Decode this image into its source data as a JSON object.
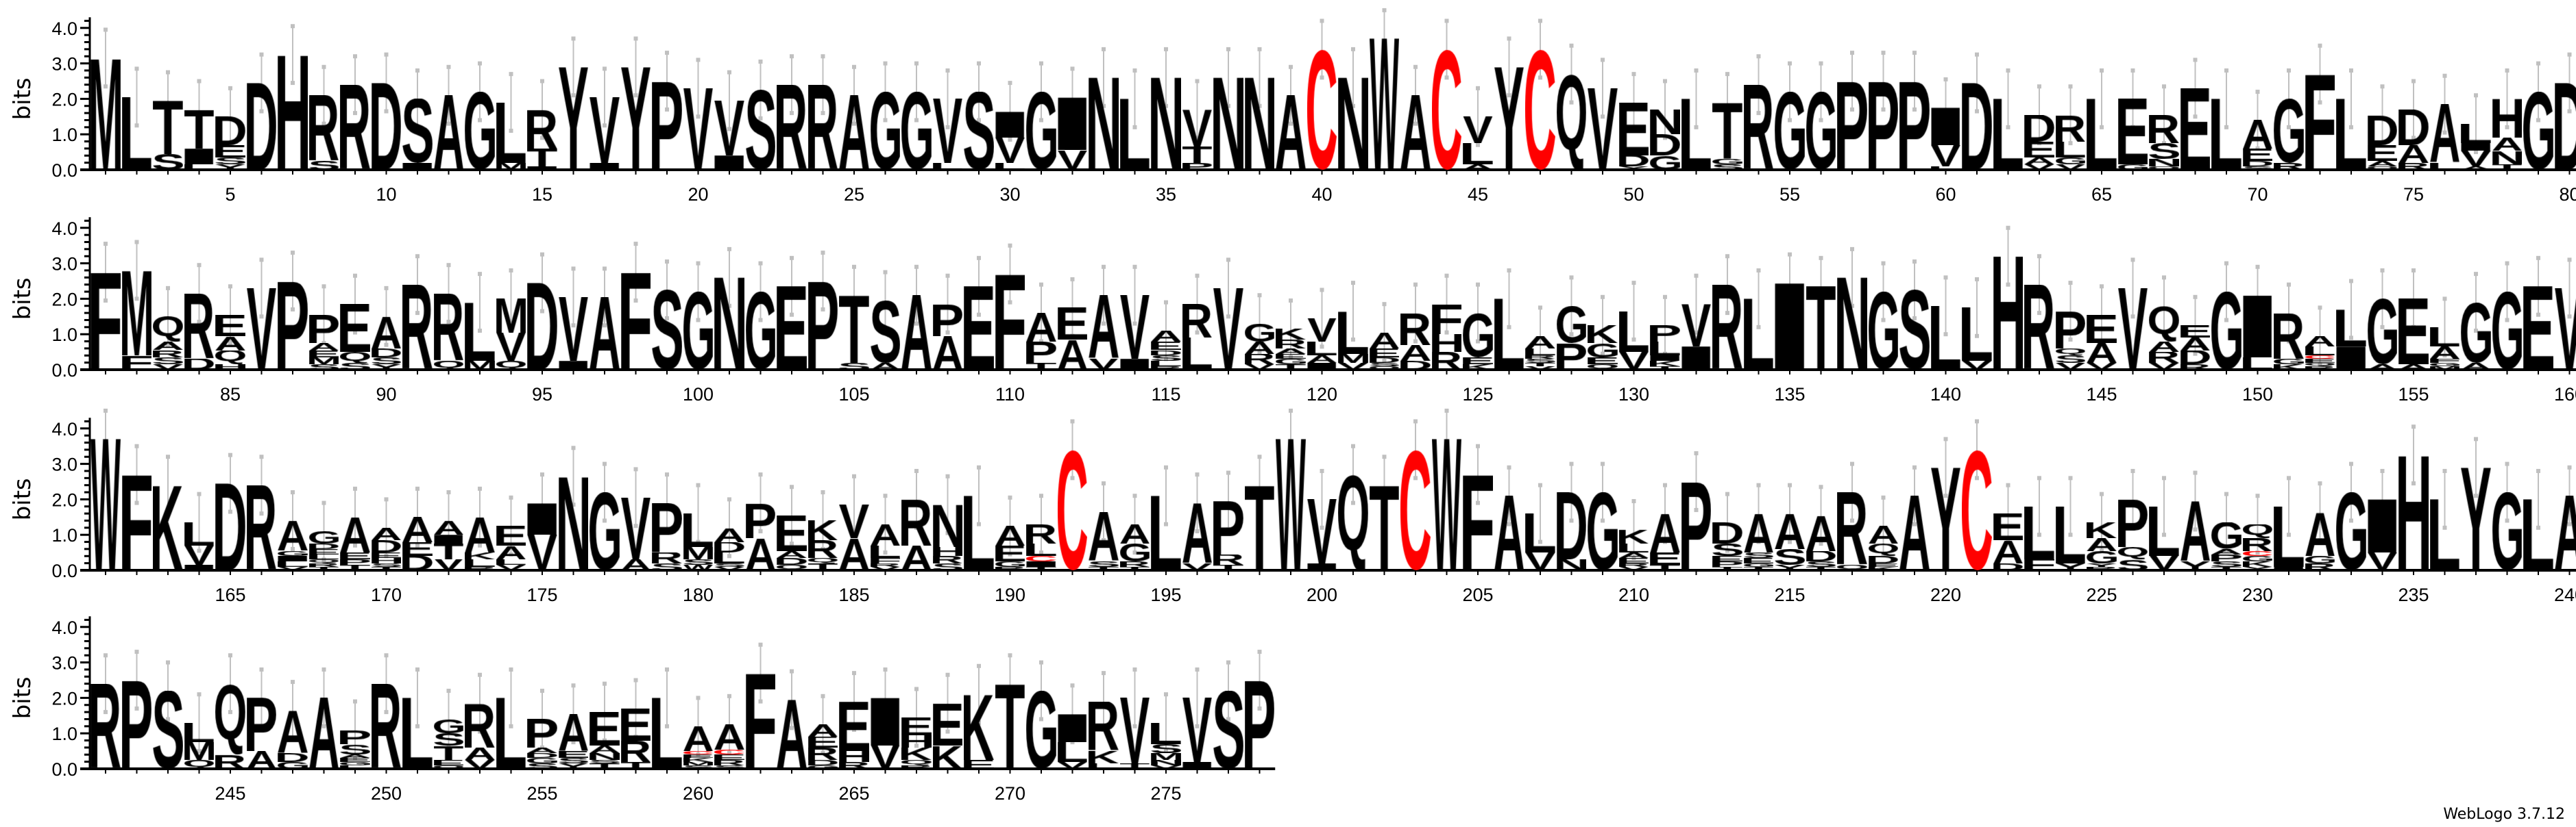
{
  "chart_data": {
    "type": "sequence-logo",
    "ylabel": "bits",
    "ylim": [
      0,
      4.3
    ],
    "yticks": [
      "0.0",
      "1.0",
      "2.0",
      "3.0",
      "4.0"
    ],
    "positions_per_line": 80,
    "first_position": 1,
    "last_position": 278,
    "xtick_every": 5,
    "error_bars": true,
    "errorbar_halfwidth_bits": 0.8,
    "colors": {
      "default": "#000000",
      "C": "#ff0000",
      "errorbar": "#c0c0c0"
    },
    "column_format": "letters stacked bottom-to-top, letter:bits",
    "columns": [
      "M:3.15",
      "L:2.05",
      "S:0.45 T:1.5",
      "L:0.15 I:0.45 T:1.1",
      "Y:0.15 S:0.2 E:0.35 D:0.8",
      "D:2.45",
      "H:3.25",
      "S:0.25 R:1.85",
      "R:2.4",
      "D:2.45",
      "I:0.2 S:1.8",
      "A:2.1",
      "G:2.2",
      "M:0.2 L:1.7",
      "I:0.1 T:0.5 R:1.1",
      "Y:2.9",
      "I:0.2 V:1.85",
      "Y:2.9",
      "P:2.5",
      "V:2.3",
      "I:0.4 V:1.55",
      "S:2.25",
      "R:2.4",
      "R:2.4",
      "A:2.1",
      "G:2.2",
      "G:2.2",
      "L:0.2 V:1.8",
      "S:2.2",
      "L:0.2 V:0.7 I:0.75",
      "G:2.2",
      "V:0.55 I:1.5",
      "N:2.6",
      "L:2.0",
      "N:2.6",
      "P:0.2 T:0.45 V:1.05",
      "N:2.6",
      "N:2.6",
      "A:2.1",
      "C:3.4",
      "N:2.6",
      "W:3.7",
      "A:2.1",
      "C:3.4",
      "A:0.15 L:0.6 V:0.75",
      "Y:2.9",
      "C:3.4",
      "Q:2.7",
      "V:2.3",
      "Y:0.1 D:0.3 E:1.5",
      "G:0.4 D:0.6 N:0.7",
      "L:2.0",
      "S:0.15 G:0.15 T:1.6",
      "R:2.4",
      "G:2.2",
      "G:2.2",
      "P:2.5",
      "P:2.5",
      "P:2.5",
      "L:0.1 V:0.6 I:1.05",
      "D:2.45",
      "L:2.0",
      "V:0.15 A:0.2 E:0.45 D:0.75",
      "V:0.15 G:0.2 L:0.45 R:0.75",
      "L:2.0",
      "G:0.15 E:1.85",
      "Q:0.1 N:0.2 S:0.45 R:0.8",
      "E:2.3",
      "L:2.0",
      "S:0.1 D:0.15 E:0.35 A:0.8",
      "R:0.2 G:1.8",
      "F:2.7",
      "L:2.0",
      "Q:0.1 A:0.15 E:0.45 D:0.85",
      "R:0.2 A:0.5 D:1.0",
      "L:0.2 A:1.65",
      "A:0.1 V:0.45 I:0.2 L:0.55",
      "T:0.15 N:0.4 A:0.35 H:1.1",
      "G:2.2",
      "D:2.45",
      "F:2.75",
      "F:0.4 M:2.4",
      "V:0.15 S:0.2 R:0.2 A:0.25 Q:0.7",
      "D:0.3 R:1.85",
      "H:0.15 Q:0.4 A:0.4 E:0.6",
      "V:2.3",
      "P:2.5",
      "S:0.15 M:0.2 E:0.2 A:0.2 P:0.8",
      "S:0.2 Q:0.3 E:1.35",
      "Y:0.15 S:0.2 D:0.25 A:0.9",
      "R:2.4",
      "Q:0.25 R:1.9",
      "M:0.25 L:1.65",
      "Q:0.25 V:0.8 M:0.95",
      "D:2.45",
      "I:0.25 V:1.8",
      "A:2.05",
      "F:2.75",
      "S:2.25",
      "G:2.2",
      "N:2.6",
      "G:2.2",
      "E:2.35",
      "P:2.5",
      "S:0.2 T:1.9",
      "A:0.2 S:1.75",
      "A:2.1",
      "A:0.95 P:0.9",
      "E:2.35",
      "F:2.7",
      "T:0.2 P:0.6 A:0.8",
      "A:0.85 E:0.9",
      "V:0.3 A:1.8",
      "I:0.3 V:1.8",
      "R:0.1 L:0.15 S:0.15 D:0.15 E:0.25 A:0.3",
      "L:0.9 R:0.95",
      "V:2.3",
      "V:0.15 R:0.3 A:0.35 G:0.5",
      "T:0.15 G:0.15 E:0.15 A:0.15 R:0.25 K:0.3",
      "I:0.2 A:0.2 L:0.4 V:0.65",
      "V:0.2 M:0.25 L:1.2",
      "Q:0.1 S:0.1 D:0.15 E:0.25 A:0.45",
      "D:0.25 A:0.45 R:0.9",
      "R:0.5 H:0.5 F:0.85",
      "K:0.15 E:0.2 G:1.25",
      "L:2.0",
      "V:0.1 T:0.1 S:0.1 R:0.1 L:0.2 A:0.35",
      "P:0.75 G:1.05",
      "Q:0.15 E:0.2 G:0.4 K:0.5",
      "V:0.5 L:1.15",
      "T:0.1 K:0.15 I:0.15 L:0.4 P:0.45",
      "I:0.65 V:1.2",
      "R:2.4",
      "L:2.0",
      "I:2.45",
      "T:2.35",
      "N:2.6",
      "G:2.2",
      "S:2.25",
      "L:1.8",
      "V:0.25 L:1.5",
      "H:3.2",
      "R:2.4",
      "V:0.2 S:0.2 Q:0.2 P:1.05",
      "V:0.2 A:0.55 E:0.8",
      "V:2.3",
      "V:0.2 R:0.3 A:0.3 Q:1.0",
      "R:0.15 D:0.4 A:0.35 E:0.35",
      "G:2.2",
      "L:0.35 I:1.75",
      "K:0.15 G:0.15 R:1.3",
      "R:0.1 Q:0.1 E:0.1 C:0.1 L:0.25 A:0.3",
      "I:0.65 L:1.05",
      "A:0.15 G:1.85",
      "A:0.15 E:1.85",
      "M:0.1 G:0.1 F:0.1 A:0.35 L:0.55",
      "A:0.2 G:1.7",
      "G:2.2",
      "E:2.35",
      "V:2.3",
      "W:3.7",
      "F:2.7",
      "K:2.4",
      "I:0.15 V:0.55 L:0.65",
      "D:2.45",
      "R:2.4",
      "V:0.1 L:0.15 I:0.15 G:0.15 A:0.85",
      "T:0.1 R:0.1 Q:0.1 L:0.15 E:0.15 D:0.15 G:0.35",
      "T:0.15 P:0.15 E:0.2 A:1.0",
      "T:0.1 S:0.1 H:0.15 E:0.15 D:0.35 A:0.35",
      "D:0.4 E:0.4 A:0.7",
      "V:0.3 T:0.45 I:0.25 A:0.4",
      "R:0.1 L:0.2 K:0.2 A:1.0",
      "V:0.15 L:0.15 A:0.4 E:0.55",
      "V:1.0 I:0.9",
      "N:2.65",
      "G:2.2",
      "A:0.3 V:1.75",
      "S:0.2 R:0.3 P:1.4",
      "W:0.15 S:0.15 M:0.35 L:0.95",
      "V:0.1 S:0.1 L:0.3 D:0.3 A:0.4",
      "A:0.9 P:1.0",
      "Q:0.15 D:0.2 A:0.2 E:1.0",
      "T:0.2 Q:0.15 R:0.5 K:0.55",
      "A:0.9 V:0.95",
      "V:0.1 R:0.1 F:0.15 L:0.35 A:0.6",
      "A:0.7 R:1.3",
      "S:0.2 R:0.2 H:0.25 N:1.2",
      "L:2.1",
      "R:0.1 G:0.15 E:0.45 A:0.55",
      "T:0.1 I:0.15 C:0.15 L:0.35 R:0.55",
      "C:3.4",
      "T:0.1 S:0.15 A:1.4",
      "T:0.1 R:0.15 G:0.5 A:0.55",
      "L:2.1",
      "V:0.2 A:1.7",
      "T:0.15 R:0.3 P:1.5",
      "T:2.4",
      "W:3.7",
      "I:0.2 V:1.8",
      "Q:2.7",
      "T:2.4",
      "C:3.4",
      "W:3.7",
      "F:2.7",
      "A:2.1",
      "V:0.5 L:1.1",
      "N:0.3 D:1.9",
      "G:2.2",
      "V:0.1 R:0.1 E:0.15 A:0.15 L:0.25 K:0.4",
      "T:0.15 E:0.35 A:1.1",
      "P:2.5",
      "T:0.1 P:0.15 E:0.15 S:0.35 D:0.6",
      "T:0.1 G:0.1 E:0.15 S:0.15 A:1.1",
      "Y:0.15 S:0.45 A:1.0",
      "T:0.1 S:0.15 D:0.3 A:1.0",
      "Q:0.15 R:2.05",
      "K:0.1 E:0.1 D:0.2 Q:0.35 A:0.5",
      "A:2.1",
      "Y:2.9",
      "C:3.4",
      "D:0.2 A:0.65 E:0.75",
      "F:0.3 L:1.5",
      "Y:0.2 L:1.6",
      "R:0.1 Y:0.1 G:0.35 A:0.35 K:0.45",
      "S:0.3 Q:0.35 P:1.35",
      "V:0.4 L:1.4",
      "Y:0.25 A:1.7",
      "T:0.1 S:0.15 P:0.2 A:0.15 G:0.75",
      "Y:0.1 K:0.15 G:0.15 C:0.15 R:0.35 Q:0.4",
      "I:0.1 L:1.7",
      "R:0.2 G:0.2 A:1.25",
      "G:2.2",
      "V:0.5 I:1.5",
      "H:3.25",
      "L:2.0",
      "Y:2.9",
      "G:2.2",
      "L:2.0",
      "A:2.1",
      "R:2.4",
      "P:2.5",
      "S:2.2",
      "Q:0.25 M:0.5 L:0.55",
      "R:0.4 Q:2.0",
      "A:0.5 P:1.5",
      "G:0.2 D:0.25 A:1.2",
      "A:2.0",
      "L:0.1 G:0.1 E:0.1 A:0.1 S:0.3 P:0.4",
      "R:2.4",
      "L:2.0",
      "Q:0.1 E:0.15 T:0.4 S:0.35 G:0.4",
      "V:0.25 A:0.35 R:1.25",
      "L:2.0",
      "S:0.15 G:0.15 D:0.15 A:0.15 P:0.8",
      "Y:0.15 S:0.15 E:0.2 A:1.05",
      "T:0.15 S:0.1 N:0.2 A:0.2 E:0.95",
      "T:0.2 R:0.6 E:0.9",
      "L:2.0",
      "S:0.1 M:0.1 K:0.1 E:0.1 C:0.1 A:0.7",
      "S:0.1 R:0.15 E:0.15 C:0.15 A:0.7",
      "F:2.7",
      "A:1.95",
      "G:0.1 D:0.15 R:0.35 E:0.3 A:0.35",
      "R:0.2 H:0.3 E:1.4",
      "V:0.65 I:1.35",
      "R:0.1 Q:0.15 K:0.35 H:0.35 E:0.5",
      "K:0.65 E:1.2",
      "E:0.25 K:1.85",
      "T:2.4",
      "G:2.2",
      "V:0.2 L:0.55 I:0.8",
      "L:0.15 K:0.35 R:1.4",
      "T:0.15 V:1.85",
      "V:0.1 N:0.15 M:0.2 S:0.25 L:0.6",
      "I:0.2 V:1.8",
      "S:2.2",
      "P:2.5"
    ]
  },
  "footer": {
    "credit": "WebLogo 3.7.12"
  }
}
